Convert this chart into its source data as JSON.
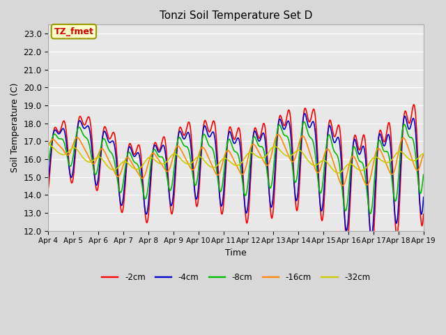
{
  "title": "Tonzi Soil Temperature Set D",
  "xlabel": "Time",
  "ylabel": "Soil Temperature (C)",
  "ylim": [
    12.0,
    23.5
  ],
  "yticks": [
    12.0,
    13.0,
    14.0,
    15.0,
    16.0,
    17.0,
    18.0,
    19.0,
    20.0,
    21.0,
    22.0,
    23.0
  ],
  "annotation_label": "TZ_fmet",
  "annotation_color": "#cc0000",
  "annotation_bg": "#ffffcc",
  "annotation_border": "#999900",
  "colors": {
    "-2cm": "#ff0000",
    "-4cm": "#0000cc",
    "-8cm": "#00bb00",
    "-16cm": "#ff8800",
    "-32cm": "#cccc00"
  },
  "line_width": 1.2,
  "fig_bg": "#d8d8d8",
  "plot_bg": "#e8e8e8",
  "x_labels": [
    "Apr 4",
    "Apr 5",
    "Apr 6",
    "Apr 7",
    "Apr 8",
    "Apr 9",
    "Apr 10",
    "Apr 11",
    "Apr 12",
    "Apr 13",
    "Apr 14",
    "Apr 15",
    "Apr 16",
    "Apr 17",
    "Apr 18",
    "Apr 19"
  ],
  "n_points": 721,
  "time_days": 15
}
